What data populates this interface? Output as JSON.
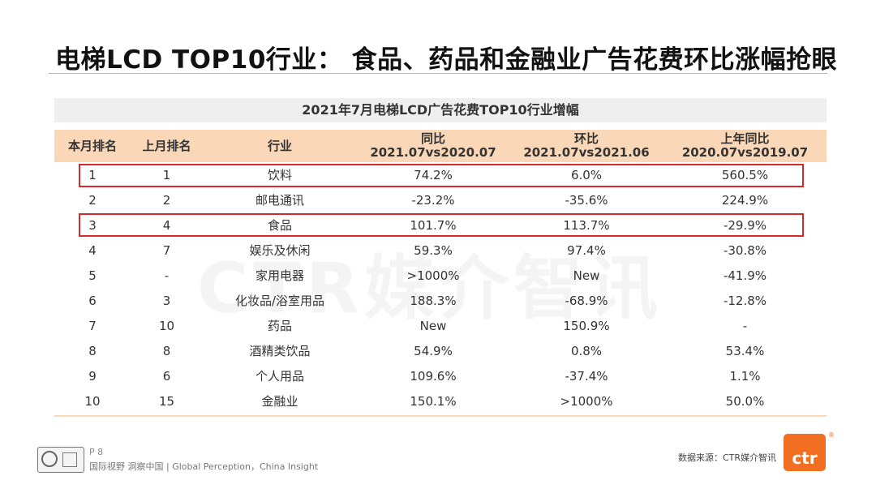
{
  "title": "电梯LCD TOP10行业： 食品、药品和金融业广告花费环比涨幅抢眼",
  "watermark": "CTR媒介智讯",
  "table": {
    "title": "2021年7月电梯LCD广告花费TOP10行业增幅",
    "headers": [
      {
        "line1": "本月排名",
        "line2": ""
      },
      {
        "line1": "上月排名",
        "line2": ""
      },
      {
        "line1": "行业",
        "line2": ""
      },
      {
        "line1": "同比",
        "line2": "2021.07vs2020.07"
      },
      {
        "line1": "环比",
        "line2": "2021.07vs2021.06"
      },
      {
        "line1": "上年同比",
        "line2": "2020.07vs2019.07"
      }
    ],
    "rows": [
      [
        "1",
        "1",
        "饮料",
        "74.2%",
        "6.0%",
        "560.5%"
      ],
      [
        "2",
        "2",
        "邮电通讯",
        "-23.2%",
        "-35.6%",
        "224.9%"
      ],
      [
        "3",
        "4",
        "食品",
        "101.7%",
        "113.7%",
        "-29.9%"
      ],
      [
        "4",
        "7",
        "娱乐及休闲",
        "59.3%",
        "97.4%",
        "-30.8%"
      ],
      [
        "5",
        "-",
        "家用电器",
        ">1000%",
        "New",
        "-41.9%"
      ],
      [
        "6",
        "3",
        "化妆品/浴室用品",
        "188.3%",
        "-68.9%",
        "-12.8%"
      ],
      [
        "7",
        "10",
        "药品",
        "New",
        "150.9%",
        "-"
      ],
      [
        "8",
        "8",
        "酒精类饮品",
        "54.9%",
        "0.8%",
        "53.4%"
      ],
      [
        "9",
        "6",
        "个人用品",
        "109.6%",
        "-37.4%",
        "1.1%"
      ],
      [
        "10",
        "15",
        "金融业",
        "150.1%",
        ">1000%",
        "50.0%"
      ]
    ]
  },
  "highlight_color": "#d42a2a",
  "header_color": "#fad7b7",
  "footer": {
    "page": "P 8",
    "slogan": "国际视野  洞察中国 | Global Perception，China Insight",
    "source": "数据来源：CTR媒介智讯",
    "brand": "ctr",
    "brand_reg": "®",
    "brand_color": "#f26e21"
  }
}
